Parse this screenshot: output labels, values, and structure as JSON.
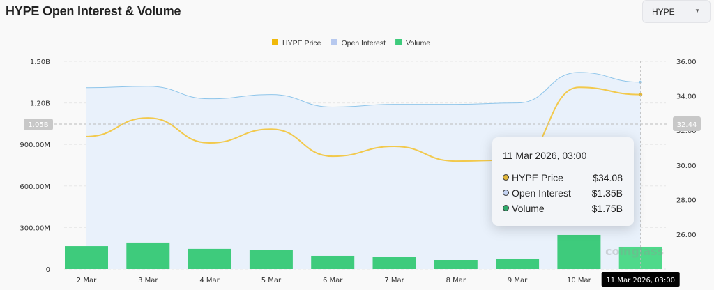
{
  "header": {
    "title": "HYPE Open Interest & Volume",
    "selector": {
      "value": "HYPE",
      "icon": "caret-down-icon"
    }
  },
  "chart_data": {
    "type": "bar+line",
    "title": "HYPE Open Interest & Volume",
    "categories": [
      "2 Mar",
      "3 Mar",
      "4 Mar",
      "5 Mar",
      "6 Mar",
      "7 Mar",
      "8 Mar",
      "9 Mar",
      "10 Mar",
      "11 Mar 2026, 03:00"
    ],
    "legend": {
      "placement": "top-center",
      "items": [
        {
          "name": "HYPE Price",
          "color": "#f0b90b"
        },
        {
          "name": "Open Interest",
          "color": "#b7c9ef"
        },
        {
          "name": "Volume",
          "color": "#3ecb7c"
        }
      ]
    },
    "left_axis": {
      "ticks": [
        "0",
        "300.00M",
        "600.00M",
        "900.00M",
        "1.20B",
        "1.50B"
      ],
      "range": [
        0,
        1.5
      ],
      "unit": "B"
    },
    "right_axis": {
      "ticks": [
        "26.00",
        "28.00",
        "30.00",
        "32.00",
        "34.00",
        "36.00"
      ],
      "range": [
        26,
        36
      ]
    },
    "grid": true,
    "series": [
      {
        "name": "Open Interest",
        "type": "area",
        "axis": "left",
        "unit": "B",
        "color": "#8ec5ea",
        "values": [
          1.31,
          1.32,
          1.23,
          1.26,
          1.17,
          1.19,
          1.19,
          1.2,
          1.42,
          1.35
        ]
      },
      {
        "name": "HYPE Price",
        "type": "line",
        "axis": "right",
        "color": "#f2c94c",
        "values": [
          31.65,
          32.73,
          31.28,
          32.08,
          30.51,
          31.08,
          30.23,
          30.3,
          34.5,
          34.08
        ]
      },
      {
        "name": "Volume",
        "type": "bar",
        "axis": "hidden",
        "unit": "B",
        "color": "#3ecb7c",
        "values": [
          1.8,
          2.08,
          1.59,
          1.48,
          1.04,
          0.98,
          0.71,
          0.82,
          2.68,
          1.75
        ]
      }
    ],
    "crosshair": {
      "left_label": "1.05B",
      "right_label": "32.44",
      "x_label": "11 Mar 2026, 03:00"
    },
    "tooltip": {
      "title": "11 Mar 2026, 03:00",
      "rows": [
        {
          "label": "HYPE Price",
          "value": "$34.08",
          "color": "#e0b53a"
        },
        {
          "label": "Open Interest",
          "value": "$1.35B",
          "color": "#c4d3f2"
        },
        {
          "label": "Volume",
          "value": "$1.75B",
          "color": "#2fa86a"
        }
      ]
    },
    "watermark": "coinglass"
  }
}
